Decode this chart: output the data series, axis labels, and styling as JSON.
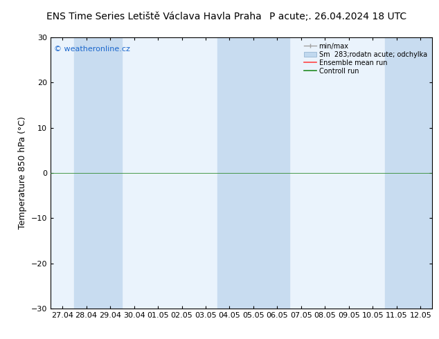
{
  "title_left": "ENS Time Series Letiště Václava Havla Praha",
  "title_right": "P acute;. 26.04.2024 18 UTC",
  "ylabel": "Temperature 850 hPa (°C)",
  "watermark": "© weatheronline.cz",
  "ylim": [
    -30,
    30
  ],
  "yticks": [
    -30,
    -20,
    -10,
    0,
    10,
    20,
    30
  ],
  "x_labels": [
    "27.04",
    "28.04",
    "29.04",
    "30.04",
    "01.05",
    "02.05",
    "03.05",
    "04.05",
    "05.05",
    "06.05",
    "07.05",
    "08.05",
    "09.05",
    "10.05",
    "11.05",
    "12.05"
  ],
  "bg_color": "#FFFFFF",
  "plot_bg": "#D6E8F8",
  "shaded_columns": [
    0,
    1,
    2,
    4,
    5,
    7,
    8,
    9,
    10,
    11,
    12,
    13,
    15
  ],
  "lighter_columns": [
    3,
    6,
    14
  ],
  "shade_color": "#D6E8F8",
  "lighter_color": "#EAF3FC",
  "zero_line_color": "#2E8B2E",
  "legend_labels": [
    "min/max",
    "Sm  283;rodatn acute; odchylka",
    "Ensemble mean run",
    "Controll run"
  ],
  "legend_colors": [
    "#A0A0A0",
    "#C0D8EE",
    "#FF4444",
    "#228B22"
  ],
  "title_fontsize": 10,
  "axis_label_fontsize": 9,
  "tick_fontsize": 8,
  "watermark_fontsize": 8,
  "watermark_color": "#1a66cc"
}
